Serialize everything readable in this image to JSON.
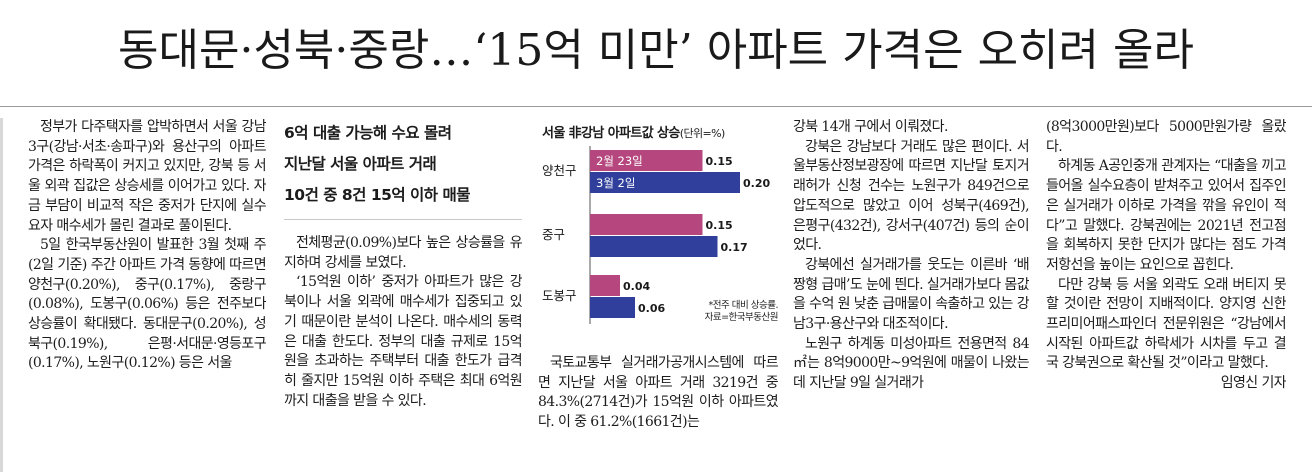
{
  "headline": "동대문·성북·중랑…‘15억 미만’ 아파트 가격은 오히려 올라",
  "column1": [
    "정부가 다주택자를 압박하면서 서울 강남3구(강남·서초·송파구)와 용산구의 아파트 가격은 하락폭이 커지고 있지만, 강북 등 서울 외곽 집값은 상승세를 이어가고 있다. 자금 부담이 비교적 작은 중저가 단지에 실수요자 매수세가 몰린 결과로 풀이된다.",
    "5일 한국부동산원이 발표한 3월 첫째 주(2일 기준) 주간 아파트 가격 동향에 따르면 양천구(0.20%), 중구(0.17%), 중랑구(0.08%), 도봉구(0.06%) 등은 전주보다 상승률이 확대됐다. 동대문구(0.20%), 성북구(0.19%), 은평·서대문·영등포구(0.17%), 노원구(0.12%) 등은 서울"
  ],
  "subheads": [
    "6억 대출 가능해 수요 몰려",
    "지난달 서울 아파트 거래",
    "10건 중 8건 15억 이하 매물"
  ],
  "column2": [
    "전체평균(0.09%)보다 높은 상승률을 유지하며 강세를 보였다.",
    "‘15억원 이하’ 중저가 아파트가 많은 강북이나 서울 외곽에 매수세가 집중되고 있기 때문이란 분석이 나온다. 매수세의 동력은 대출 한도다. 정부의 대출 규제로 15억원을 초과하는 주택부터 대출 한도가 급격히 줄지만 15억원 이하 주택은 최대 6억원까지 대출을 받을 수 있다."
  ],
  "column3": [
    "국토교통부 실거래가공개시스템에 따르면 지난달 서울 아파트 거래 3219건 중 84.3%(2714건)가 15억원 이하 아파트였다. 이 중 61.2%(1661건)는"
  ],
  "column4": [
    "강북 14개 구에서 이뤄졌다.",
    "강북은 강남보다 거래도 많은 편이다. 서울부동산정보광장에 따르면 지난달 토지거래허가 신청 건수는 노원구가 849건으로 압도적으로 많았고 이어 성북구(469건), 은평구(432건), 강서구(407건) 등의 순이었다.",
    "강북에선 실거래가를 웃도는 이른바 ‘배짱형 급매’도 눈에 띈다. 실거래가보다 몸값을 수억 원 낮춘 급매물이 속출하고 있는 강남3구·용산구와 대조적이다.",
    "노원구 하계동 미성아파트 전용면적 84㎡는 8억9000만~9억원에 매물이 나왔는데 지난달 9일 실거래가"
  ],
  "column5": [
    "(8억3000만원)보다 5000만원가량 올랐다.",
    "하계동 A공인중개 관계자는 “대출을 끼고 들어올 실수요층이 받쳐주고 있어서 집주인은 실거래가 이하로 가격을 깎을 유인이 적다”고 말했다. 강북권에는 2021년 전고점을 회복하지 못한 단지가 많다는 점도 가격 저항선을 높이는 요인으로 꼽힌다.",
    "다만 강북 등 서울 외곽도 오래 버티지 못할 것이란 전망이 지배적이다. 양지영 신한프리미어패스파인더 전문위원은 “강남에서 시작된 아파트값 하락세가 시차를 두고 결국 강북권으로 확산될 것”이라고 말했다."
  ],
  "byline": "임영신 기자",
  "chart_data": {
    "type": "bar",
    "orientation": "horizontal",
    "title": "서울 非강남 아파트값 상승",
    "unit": "(단위=%)",
    "categories": [
      "양천구",
      "중구",
      "도봉구"
    ],
    "series": [
      {
        "name": "2월 23일",
        "values": [
          0.15,
          0.15,
          0.04
        ],
        "color": "#b5477e"
      },
      {
        "name": "3월 2일",
        "values": [
          0.2,
          0.17,
          0.06
        ],
        "color": "#2f3f9b"
      }
    ],
    "value_labels": [
      [
        "0.15",
        "0.15",
        "0.04"
      ],
      [
        "0.20",
        "0.17",
        "0.06"
      ]
    ],
    "xlim": [
      0,
      0.2
    ],
    "note": [
      "*전주 대비 상승률.",
      "자료=한국부동산원"
    ]
  }
}
